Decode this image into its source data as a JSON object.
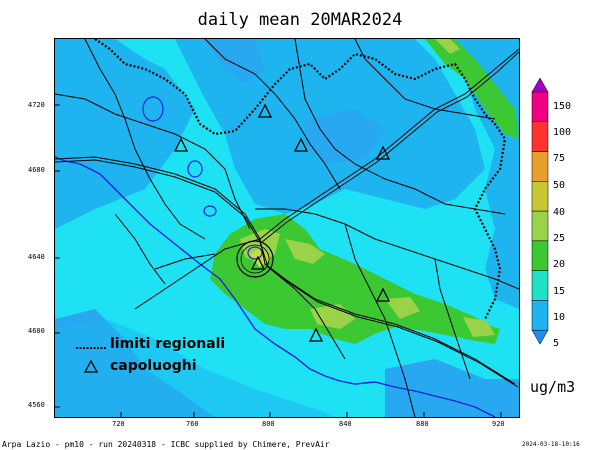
{
  "title": "daily mean 20MAR2024",
  "y_ticks": [
    "4720",
    "4680",
    "4640",
    "4600",
    "4560"
  ],
  "x_ticks": [
    "720",
    "760",
    "800",
    "840",
    "880",
    "920"
  ],
  "legend": {
    "labels": [
      "150",
      "100",
      "75",
      "50",
      "40",
      "25",
      "20",
      "15",
      "10",
      "5"
    ],
    "colors": [
      "#a000c8",
      "#f00082",
      "#ff3232",
      "#e8a02a",
      "#c8c832",
      "#9ad24a",
      "#3cc832",
      "#1ee1c8",
      "#1eb4f0",
      "#1e8cf0"
    ],
    "unit": "ug/m3"
  },
  "key": {
    "boundary": "limiti regionali",
    "capitals": "capoluoghi"
  },
  "footer": {
    "left": "Arpa Lazio - pm10 - run 20240318 - ICBC supplied by Chimere, PrevAir",
    "right": "2024-03-18-10:16"
  },
  "capitals": [
    "capital-1",
    "capital-2",
    "capital-3",
    "capital-4",
    "capital-5",
    "capital-6",
    "capital-7"
  ]
}
